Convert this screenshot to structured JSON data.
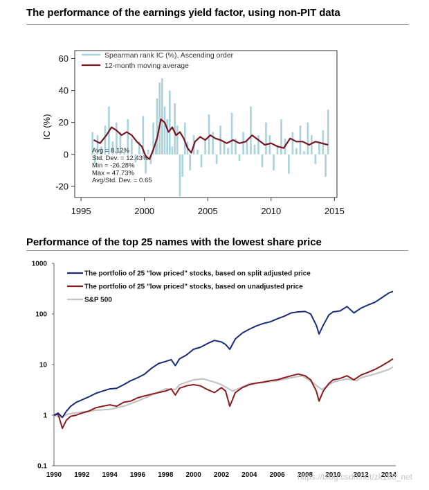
{
  "titles": {
    "top": "The performance of the earnings yield factor, using non-PIT data",
    "bottom": "Performance of the top 25 names with the lowest share price"
  },
  "watermark": "https://blog.csdn.net/zk168_net",
  "chart_data": [
    {
      "type": "bar",
      "ylabel": "IC (%)",
      "xlim": [
        1994.5,
        2015.2
      ],
      "ylim": [
        -27,
        65
      ],
      "x_ticks": [
        1995,
        2000,
        2005,
        2010,
        2015
      ],
      "y_ticks": [
        -20,
        0,
        20,
        40,
        60
      ],
      "legend_position": "top-left",
      "series": [
        {
          "name": "Spearman rank IC (%), Ascending order",
          "color": "#a8d3dc",
          "x": [
            1995.9,
            1996.1,
            1996.3,
            1996.6,
            1996.9,
            1997.2,
            1997.5,
            1997.8,
            1998.1,
            1998.4,
            1998.7,
            1999.0,
            1999.3,
            1999.6,
            1999.9,
            2000.1,
            2000.3,
            2000.5,
            2000.7,
            2000.9,
            2001.0,
            2001.2,
            2001.4,
            2001.6,
            2001.8,
            2002.0,
            2002.2,
            2002.4,
            2002.6,
            2002.8,
            2003.0,
            2003.2,
            2003.4,
            2003.6,
            2003.9,
            2004.2,
            2004.5,
            2004.8,
            2005.1,
            2005.4,
            2005.7,
            2006.0,
            2006.3,
            2006.6,
            2006.9,
            2007.2,
            2007.5,
            2007.8,
            2008.1,
            2008.4,
            2008.7,
            2009.0,
            2009.3,
            2009.6,
            2009.9,
            2010.2,
            2010.5,
            2010.8,
            2011.1,
            2011.4,
            2011.7,
            2012.0,
            2012.3,
            2012.6,
            2012.9,
            2013.2,
            2013.5,
            2013.8,
            2014.1,
            2014.3,
            2014.5
          ],
          "values": [
            14,
            -6,
            12,
            5,
            18,
            30,
            8,
            20,
            14,
            2,
            22,
            10,
            -5,
            8,
            24,
            -12,
            3,
            -6,
            20,
            10,
            35,
            45,
            47.7,
            30,
            22,
            40,
            5,
            32,
            18,
            -26.3,
            -14,
            20,
            8,
            -10,
            12,
            3,
            -8,
            10,
            25,
            14,
            -6,
            18,
            8,
            4,
            26,
            10,
            -4,
            14,
            8,
            30,
            6,
            12,
            -8,
            20,
            12,
            -10,
            6,
            22,
            10,
            -12,
            14,
            4,
            18,
            2,
            20,
            12,
            -6,
            8,
            15,
            -14,
            28
          ]
        },
        {
          "name": "12-month moving average",
          "color": "#7a1420",
          "x": [
            1996.0,
            1996.5,
            1997.0,
            1997.4,
            1997.8,
            1998.2,
            1998.6,
            1999.0,
            1999.4,
            1999.8,
            2000.1,
            2000.4,
            2000.7,
            2001.0,
            2001.3,
            2001.6,
            2001.9,
            2002.2,
            2002.5,
            2002.8,
            2003.1,
            2003.4,
            2003.7,
            2004.0,
            2004.4,
            2004.8,
            2005.2,
            2005.6,
            2006.0,
            2006.5,
            2007.0,
            2007.5,
            2008.0,
            2008.5,
            2009.0,
            2009.5,
            2010.0,
            2010.5,
            2011.0,
            2011.5,
            2012.0,
            2012.5,
            2013.0,
            2013.5,
            2014.0,
            2014.5
          ],
          "values": [
            9,
            7,
            12,
            17,
            15,
            12,
            14,
            12,
            8,
            5,
            -1,
            -3,
            3,
            10,
            22,
            20,
            14,
            17,
            12,
            14,
            10,
            4,
            1,
            8,
            11,
            9,
            12,
            10,
            9,
            7,
            9,
            7,
            8,
            12,
            9,
            6,
            7,
            5,
            4,
            10,
            8,
            8,
            6,
            8,
            7,
            6
          ]
        }
      ],
      "stats": [
        "Avg = 8.12%",
        "Std. Dev. = 12.43%",
        "Min = -26.28%",
        "Max = 47.73%",
        "Avg/Std. Dev. = 0.65"
      ]
    },
    {
      "type": "line",
      "log_scale_y": true,
      "xlim": [
        1990,
        2014.3
      ],
      "ylim": [
        0.1,
        1000
      ],
      "x_ticks": [
        1990,
        1992,
        1994,
        1996,
        1998,
        2000,
        2002,
        2004,
        2006,
        2008,
        2010,
        2012,
        2014
      ],
      "y_ticks": [
        0.1,
        1,
        10,
        100,
        1000
      ],
      "y_tick_labels": [
        "0.1",
        "1",
        "10",
        "100",
        "1000"
      ],
      "legend_position": "top-left",
      "series": [
        {
          "name": "The portfolio of 25 \"low priced\" stocks, based on split adjusted price",
          "color": "#1b2a78",
          "x": [
            1990.0,
            1990.3,
            1990.6,
            1990.9,
            1991.2,
            1991.6,
            1992.0,
            1992.5,
            1993.0,
            1993.5,
            1994.0,
            1994.5,
            1995.0,
            1995.5,
            1996.0,
            1996.5,
            1997.0,
            1997.5,
            1998.0,
            1998.4,
            1998.7,
            1999.0,
            1999.5,
            2000.0,
            2000.5,
            2001.0,
            2001.5,
            2002.0,
            2002.3,
            2002.6,
            2003.0,
            2003.5,
            2004.0,
            2004.5,
            2005.0,
            2005.5,
            2006.0,
            2006.5,
            2007.0,
            2007.5,
            2008.0,
            2008.4,
            2008.8,
            2009.0,
            2009.3,
            2009.7,
            2010.0,
            2010.5,
            2011.0,
            2011.5,
            2012.0,
            2012.5,
            2013.0,
            2013.5,
            2014.0,
            2014.3
          ],
          "values": [
            1.0,
            1.1,
            0.9,
            1.2,
            1.5,
            1.8,
            2.0,
            2.3,
            2.7,
            3.0,
            3.3,
            3.4,
            4.0,
            4.8,
            5.5,
            6.5,
            8.5,
            10.5,
            11.5,
            12.5,
            9.5,
            13.0,
            15.5,
            20.0,
            22.0,
            26.0,
            30.0,
            28.0,
            25.0,
            20.0,
            32.0,
            42.0,
            50.0,
            58.0,
            65.0,
            70.0,
            80.0,
            90.0,
            105.0,
            110.0,
            112.0,
            100.0,
            60.0,
            40.0,
            60.0,
            95.0,
            110.0,
            115.0,
            140.0,
            105.0,
            130.0,
            150.0,
            170.0,
            210.0,
            260.0,
            280.0
          ]
        },
        {
          "name": "The portfolio of 25 \"low priced\" stocks, based on unadjusted price",
          "color": "#8c1a1f",
          "x": [
            1990.0,
            1990.3,
            1990.6,
            1990.9,
            1991.2,
            1991.6,
            1992.0,
            1992.5,
            1993.0,
            1993.5,
            1994.0,
            1994.5,
            1995.0,
            1995.5,
            1996.0,
            1996.5,
            1997.0,
            1997.5,
            1998.0,
            1998.4,
            1998.7,
            1999.0,
            1999.5,
            2000.0,
            2000.5,
            2001.0,
            2001.5,
            2002.0,
            2002.3,
            2002.6,
            2003.0,
            2003.5,
            2004.0,
            2004.5,
            2005.0,
            2005.5,
            2006.0,
            2006.5,
            2007.0,
            2007.5,
            2008.0,
            2008.4,
            2008.8,
            2009.0,
            2009.3,
            2009.7,
            2010.0,
            2010.5,
            2011.0,
            2011.5,
            2012.0,
            2012.5,
            2013.0,
            2013.5,
            2014.0,
            2014.3
          ],
          "values": [
            1.0,
            1.05,
            0.55,
            0.8,
            0.95,
            1.0,
            1.1,
            1.2,
            1.4,
            1.5,
            1.6,
            1.5,
            1.8,
            1.9,
            2.2,
            2.4,
            2.6,
            2.8,
            3.0,
            3.3,
            2.5,
            3.4,
            3.8,
            4.0,
            3.8,
            3.2,
            2.8,
            3.5,
            3.0,
            1.5,
            2.8,
            3.5,
            4.0,
            4.3,
            4.5,
            4.8,
            5.0,
            5.5,
            6.0,
            6.5,
            6.0,
            5.0,
            3.0,
            1.9,
            3.0,
            4.2,
            5.0,
            5.3,
            6.0,
            5.0,
            6.2,
            7.0,
            8.0,
            9.5,
            11.5,
            13.0
          ]
        },
        {
          "name": "S&P 500",
          "color": "#c4c4c4",
          "x": [
            1990.0,
            1990.5,
            1991.0,
            1992.0,
            1993.0,
            1994.0,
            1995.0,
            1996.0,
            1997.0,
            1998.0,
            1998.7,
            1999.0,
            2000.0,
            2000.7,
            2001.5,
            2002.0,
            2002.8,
            2003.5,
            2004.0,
            2005.0,
            2006.0,
            2007.0,
            2007.8,
            2008.5,
            2009.2,
            2010.0,
            2011.0,
            2011.7,
            2012.0,
            2013.0,
            2014.0,
            2014.3
          ],
          "values": [
            1.0,
            0.9,
            1.05,
            1.15,
            1.25,
            1.3,
            1.5,
            1.9,
            2.5,
            3.3,
            3.2,
            4.0,
            5.0,
            5.2,
            4.5,
            4.0,
            3.0,
            3.6,
            4.2,
            4.4,
            4.8,
            5.5,
            6.0,
            4.5,
            3.2,
            4.5,
            5.2,
            4.8,
            5.5,
            6.5,
            8.0,
            9.0
          ]
        }
      ]
    }
  ]
}
